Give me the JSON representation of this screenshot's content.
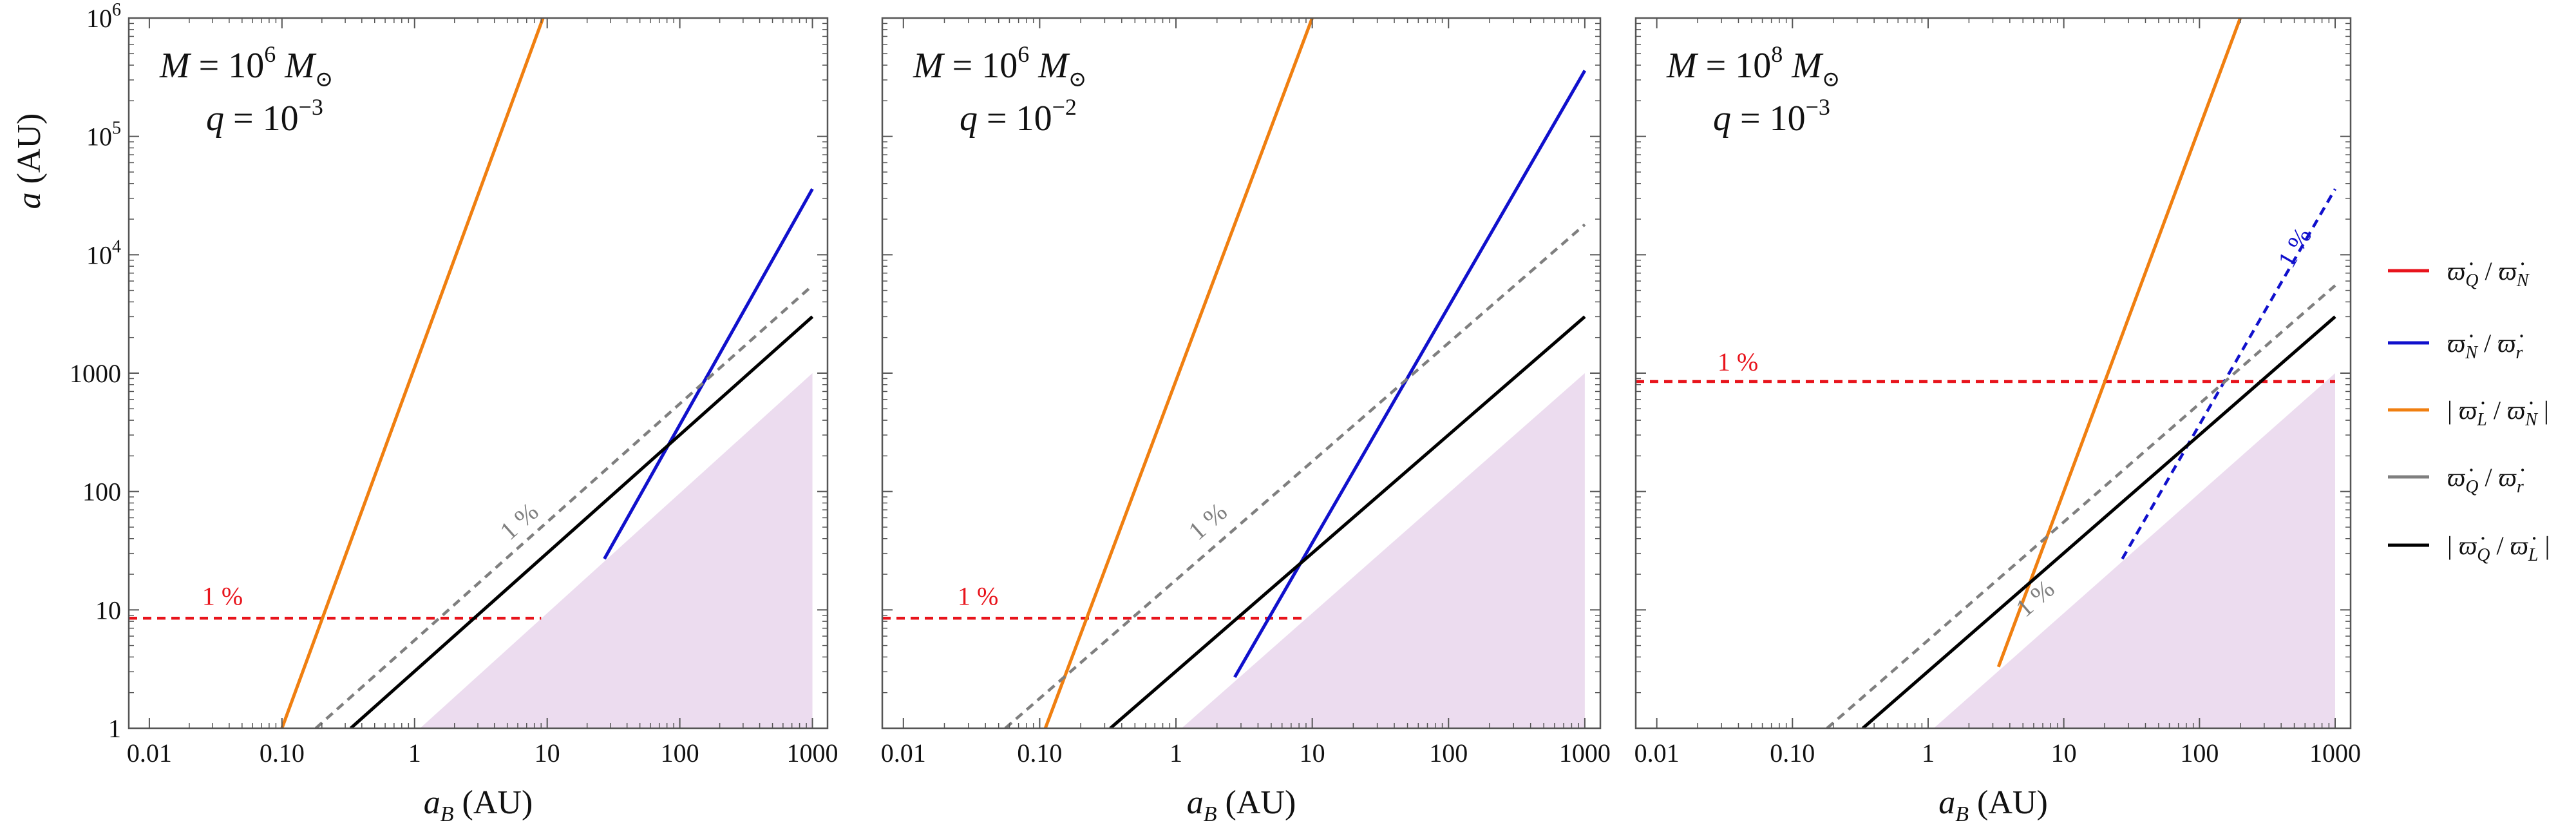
{
  "chart_data": [
    {
      "type": "line",
      "panel": "left",
      "annotation": {
        "mass_label": "M = 10",
        "mass_exp": "6",
        "mass_unit": "M",
        "q_label": "q = 10",
        "q_exp": "−3"
      },
      "xlabel": "a_B (AU)",
      "ylabel": "a (AU)",
      "xscale": "log",
      "yscale": "log",
      "xlim": [
        0.007,
        1300
      ],
      "ylim": [
        1,
        1000000
      ],
      "xticks": [
        0.01,
        0.1,
        1,
        10,
        100,
        1000
      ],
      "xtick_labels": [
        "0.01",
        "0.10",
        "1",
        "10",
        "100",
        "1000"
      ],
      "yticks": [
        1,
        10,
        100,
        1000,
        10000,
        100000,
        1000000
      ],
      "ytick_labels": [
        "1",
        "10",
        "100",
        "1000",
        "10^4",
        "10^5",
        "10^6"
      ],
      "shaded_region": {
        "x": [
          1.1,
          1000,
          1000
        ],
        "y": [
          1,
          1,
          1000
        ]
      },
      "series": [
        {
          "name": "Q/N",
          "color": "#e8141c",
          "dash": true,
          "x": [
            0.007,
            9
          ],
          "y": [
            8.5,
            8.5
          ],
          "label": "1 %",
          "label_at": [
            0.025,
            11
          ]
        },
        {
          "name": "N/r",
          "color": "#1010cc",
          "dash": false,
          "x": [
            27,
            1000
          ],
          "y": [
            27,
            36000
          ]
        },
        {
          "name": "L/N",
          "color": "#f07f10",
          "dash": false,
          "x": [
            0.1,
            9.3
          ],
          "y": [
            1,
            1000000
          ]
        },
        {
          "name": "Q/r",
          "color": "#7f7f7f",
          "dash": true,
          "x": [
            0.18,
            1000
          ],
          "y": [
            1,
            5500
          ],
          "label": "1 %",
          "label_at": [
            5.2,
            38
          ]
        },
        {
          "name": "Q/L",
          "color": "#000000",
          "dash": false,
          "x": [
            0.33,
            1000
          ],
          "y": [
            1,
            3000
          ]
        }
      ]
    },
    {
      "type": "line",
      "panel": "middle",
      "annotation": {
        "mass_label": "M = 10",
        "mass_exp": "6",
        "mass_unit": "M",
        "q_label": "q = 10",
        "q_exp": "−2"
      },
      "xlabel": "a_B (AU)",
      "ylabel": "",
      "xscale": "log",
      "yscale": "log",
      "xlim": [
        0.007,
        1300
      ],
      "ylim": [
        1,
        1000000
      ],
      "xticks": [
        0.01,
        0.1,
        1,
        10,
        100,
        1000
      ],
      "xtick_labels": [
        "0.01",
        "0.10",
        "1",
        "10",
        "100",
        "1000"
      ],
      "yticks": [
        1,
        10,
        100,
        1000,
        10000,
        100000,
        1000000
      ],
      "ytick_labels": [],
      "shaded_region": {
        "x": [
          1.1,
          1000,
          1000
        ],
        "y": [
          1,
          1,
          1000
        ]
      },
      "series": [
        {
          "name": "Q/N",
          "color": "#e8141c",
          "dash": true,
          "x": [
            0.007,
            9
          ],
          "y": [
            8.5,
            8.5
          ],
          "label": "1 %",
          "label_at": [
            0.025,
            11
          ]
        },
        {
          "name": "N/r",
          "color": "#1010cc",
          "dash": false,
          "x": [
            2.7,
            1000
          ],
          "y": [
            2.7,
            360000
          ]
        },
        {
          "name": "L/N",
          "color": "#f07f10",
          "dash": false,
          "x": [
            0.11,
            10
          ],
          "y": [
            1,
            1000000
          ]
        },
        {
          "name": "Q/r",
          "color": "#7f7f7f",
          "dash": true,
          "x": [
            0.056,
            1000
          ],
          "y": [
            1,
            18000
          ],
          "label": "1 %",
          "label_at": [
            1.45,
            38
          ]
        },
        {
          "name": "Q/L",
          "color": "#000000",
          "dash": false,
          "x": [
            0.33,
            1000
          ],
          "y": [
            1,
            3000
          ]
        }
      ]
    },
    {
      "type": "line",
      "panel": "right",
      "annotation": {
        "mass_label": "M = 10",
        "mass_exp": "8",
        "mass_unit": "M",
        "q_label": "q = 10",
        "q_exp": "−3"
      },
      "xlabel": "a_B (AU)",
      "ylabel": "",
      "xscale": "log",
      "yscale": "log",
      "xlim": [
        0.007,
        1300
      ],
      "ylim": [
        1,
        1000000
      ],
      "xticks": [
        0.01,
        0.1,
        1,
        10,
        100,
        1000
      ],
      "xtick_labels": [
        "0.01",
        "0.10",
        "1",
        "10",
        "100",
        "1000"
      ],
      "yticks": [
        1,
        10,
        100,
        1000,
        10000,
        100000,
        1000000
      ],
      "ytick_labels": [],
      "shaded_region": {
        "x": [
          1.1,
          1000,
          1000
        ],
        "y": [
          1,
          1,
          1000
        ]
      },
      "series": [
        {
          "name": "Q/N",
          "color": "#e8141c",
          "dash": true,
          "x": [
            0.007,
            1000
          ],
          "y": [
            850,
            850
          ],
          "label": "1 %",
          "label_at": [
            0.028,
            1050
          ]
        },
        {
          "name": "N/r",
          "color": "#1010cc",
          "dash": true,
          "x": [
            27,
            1000
          ],
          "y": [
            27,
            36000
          ],
          "label": "1 %",
          "label_at": [
            480,
            7500
          ]
        },
        {
          "name": "L/N",
          "color": "#f07f10",
          "dash": false,
          "x": [
            3.3,
            200
          ],
          "y": [
            3.3,
            1000000
          ]
        },
        {
          "name": "Q/r",
          "color": "#7f7f7f",
          "dash": true,
          "x": [
            0.18,
            1000
          ],
          "y": [
            1,
            5500
          ],
          "label": "1 %",
          "label_at": [
            5.2,
            8.5
          ]
        },
        {
          "name": "Q/L",
          "color": "#000000",
          "dash": false,
          "x": [
            0.33,
            1000
          ],
          "y": [
            1,
            3000
          ]
        }
      ]
    }
  ],
  "legend": {
    "placement": "right",
    "items": [
      {
        "color": "#e8141c",
        "num": "ϖ̇",
        "num_sub": "Q",
        "den": "ϖ̇",
        "den_sub": "N",
        "abs": false
      },
      {
        "color": "#1010cc",
        "num": "ϖ̇",
        "num_sub": "N",
        "den": "ϖ̇",
        "den_sub": "r",
        "abs": false
      },
      {
        "color": "#f07f10",
        "num": "ϖ̇",
        "num_sub": "L",
        "den": "ϖ̇",
        "den_sub": "N",
        "abs": true
      },
      {
        "color": "#7f7f7f",
        "num": "ϖ̇",
        "num_sub": "Q",
        "den": "ϖ̇",
        "den_sub": "r",
        "abs": false
      },
      {
        "color": "#000000",
        "num": "ϖ̇",
        "num_sub": "Q",
        "den": "ϖ̇",
        "den_sub": "L",
        "abs": true
      }
    ]
  },
  "colors": {
    "shade": "#ecdcef",
    "frame": "#555555"
  }
}
